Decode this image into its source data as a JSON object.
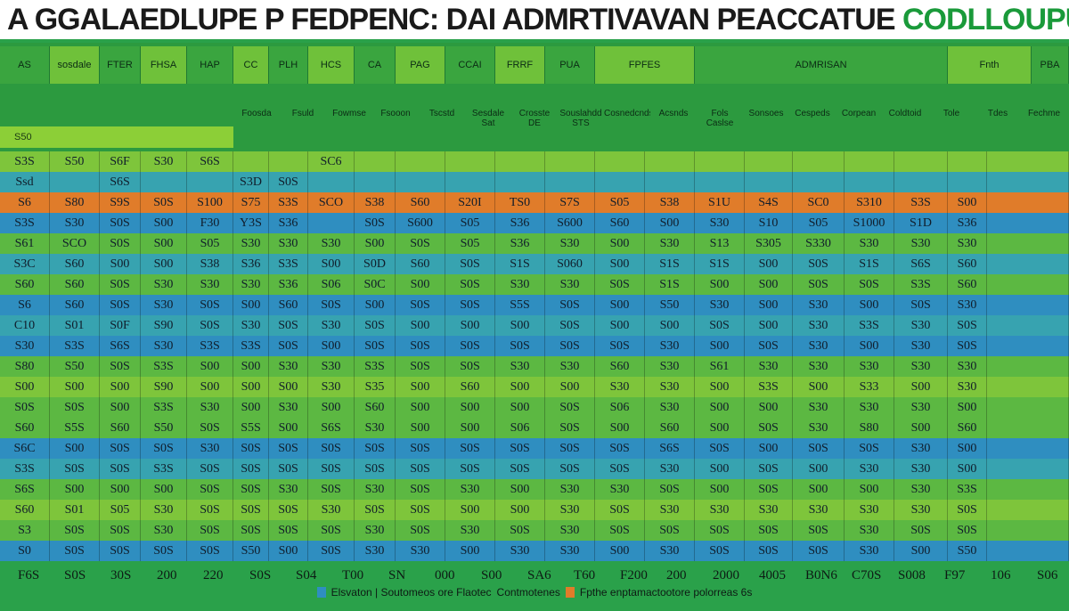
{
  "title": {
    "part1": "A GGALAEDLUPE",
    "part2": "P FEDPENC: DAI ADMRTIVAVAN PEACCATUE",
    "part3": "CODLLOUPUSE"
  },
  "header": {
    "top_cells": [
      "AS",
      "sosdale",
      "FTER",
      "FHSA",
      "HAP",
      "CC",
      "PLH",
      "HCS",
      "CA",
      "PAG",
      "CCAI",
      "FRRF",
      "PUA",
      "FPFES",
      "ADMRISAN",
      "Fnth",
      "PBA"
    ],
    "side_strip": "S50",
    "sub_heads": [
      "Foosda",
      "Fsuld",
      "Fowmse",
      "Fsooon",
      "Tscstd",
      "Sesdale\nSat",
      "Crosste\nDE",
      "Souslahdd\nSTS",
      "Cosnedcnds",
      "Acsnds",
      "Fols\nCaslse",
      "Sonsoes",
      "Cespeds",
      "Corpean",
      "Coldtoid",
      "Tole",
      "Tdes",
      "Fechme"
    ]
  },
  "colors": {
    "blue": "#2f8ec0",
    "teal": "#37a3b0",
    "green": "#5cb842",
    "lime": "#7ec53b",
    "orange": "#e07c2a",
    "header": "#2c9a3f",
    "title_green": "#1a9a3a"
  },
  "rows": [
    {
      "style": "lime",
      "cells": [
        "S3S",
        "S50",
        "S6F",
        "S30",
        "S6S",
        "",
        "",
        "SC6",
        "",
        "",
        "",
        "",
        "",
        "",
        "",
        "",
        "",
        "",
        "",
        "",
        ""
      ]
    },
    {
      "style": "teal",
      "cells": [
        "Ssd",
        "",
        "S6S",
        "",
        "",
        "S3D",
        "S0S",
        "",
        "",
        "",
        "",
        "",
        "",
        "",
        "",
        "",
        "",
        "",
        "",
        "",
        ""
      ]
    },
    {
      "style": "orange",
      "cells": [
        "S6",
        "S80",
        "S9S",
        "S0S",
        "S100",
        "S75",
        "S3S",
        "SCO",
        "S38",
        "S60",
        "S20I",
        "TS0",
        "S7S",
        "S05",
        "S38",
        "S1U",
        "S4S",
        "SC0",
        "S310",
        "S3S",
        "S00"
      ]
    },
    {
      "style": "blue",
      "cells": [
        "S3S",
        "S30",
        "S0S",
        "S00",
        "F30",
        "Y3S",
        "S36",
        "",
        "S0S",
        "S600",
        "S05",
        "S36",
        "S600",
        "S60",
        "S00",
        "S30",
        "S10",
        "S05",
        "S1000",
        "S1D",
        "S36"
      ]
    },
    {
      "style": "green",
      "cells": [
        "S61",
        "SCO",
        "S0S",
        "S00",
        "S05",
        "S30",
        "S30",
        "S30",
        "S00",
        "S0S",
        "S05",
        "S36",
        "S30",
        "S00",
        "S30",
        "S13",
        "S305",
        "S330",
        "S30",
        "S30",
        "S30"
      ]
    },
    {
      "style": "teal",
      "cells": [
        "S3C",
        "S60",
        "S00",
        "S00",
        "S38",
        "S36",
        "S3S",
        "S00",
        "S0D",
        "S60",
        "S0S",
        "S1S",
        "S060",
        "S00",
        "S1S",
        "S1S",
        "S00",
        "S0S",
        "S1S",
        "S6S",
        "S60"
      ]
    },
    {
      "style": "green",
      "cells": [
        "S60",
        "S60",
        "S0S",
        "S30",
        "S30",
        "S30",
        "S36",
        "S06",
        "S0C",
        "S00",
        "S0S",
        "S30",
        "S30",
        "S0S",
        "S1S",
        "S00",
        "S00",
        "S0S",
        "S0S",
        "S3S",
        "S60"
      ]
    },
    {
      "style": "blue",
      "cells": [
        "S6",
        "S60",
        "S0S",
        "S30",
        "S0S",
        "S00",
        "S60",
        "S0S",
        "S00",
        "S0S",
        "S0S",
        "S5S",
        "S0S",
        "S00",
        "S50",
        "S30",
        "S00",
        "S30",
        "S00",
        "S0S",
        "S30"
      ]
    },
    {
      "style": "teal",
      "cells": [
        "C10",
        "S01",
        "S0F",
        "S90",
        "S0S",
        "S30",
        "S0S",
        "S30",
        "S0S",
        "S00",
        "S00",
        "S00",
        "S0S",
        "S00",
        "S00",
        "S0S",
        "S00",
        "S30",
        "S3S",
        "S30",
        "S0S"
      ]
    },
    {
      "style": "blue",
      "cells": [
        "S30",
        "S3S",
        "S6S",
        "S30",
        "S3S",
        "S3S",
        "S0S",
        "S00",
        "S0S",
        "S0S",
        "S0S",
        "S0S",
        "S0S",
        "S0S",
        "S30",
        "S00",
        "S0S",
        "S30",
        "S00",
        "S30",
        "S0S"
      ]
    },
    {
      "style": "green",
      "cells": [
        "S80",
        "S50",
        "S0S",
        "S3S",
        "S00",
        "S00",
        "S30",
        "S30",
        "S3S",
        "S0S",
        "S0S",
        "S30",
        "S30",
        "S60",
        "S30",
        "S61",
        "S30",
        "S30",
        "S30",
        "S30",
        "S30"
      ]
    },
    {
      "style": "lime",
      "cells": [
        "S00",
        "S00",
        "S00",
        "S90",
        "S00",
        "S00",
        "S00",
        "S30",
        "S35",
        "S00",
        "S60",
        "S00",
        "S00",
        "S30",
        "S30",
        "S00",
        "S3S",
        "S00",
        "S33",
        "S00",
        "S30"
      ]
    },
    {
      "style": "green",
      "cells": [
        "S0S",
        "S0S",
        "S00",
        "S3S",
        "S30",
        "S00",
        "S30",
        "S00",
        "S60",
        "S00",
        "S00",
        "S00",
        "S0S",
        "S06",
        "S30",
        "S00",
        "S00",
        "S30",
        "S30",
        "S30",
        "S00"
      ]
    },
    {
      "style": "green",
      "cells": [
        "S60",
        "S5S",
        "S60",
        "S50",
        "S0S",
        "S5S",
        "S00",
        "S6S",
        "S30",
        "S00",
        "S00",
        "S06",
        "S0S",
        "S00",
        "S60",
        "S00",
        "S0S",
        "S30",
        "S80",
        "S00",
        "S60"
      ]
    },
    {
      "style": "blue",
      "cells": [
        "S6C",
        "S00",
        "S0S",
        "S0S",
        "S30",
        "S0S",
        "S0S",
        "S0S",
        "S0S",
        "S0S",
        "S0S",
        "S0S",
        "S0S",
        "S0S",
        "S6S",
        "S0S",
        "S00",
        "S0S",
        "S0S",
        "S30",
        "S00"
      ]
    },
    {
      "style": "teal",
      "cells": [
        "S3S",
        "S0S",
        "S0S",
        "S3S",
        "S0S",
        "S0S",
        "S0S",
        "S0S",
        "S0S",
        "S0S",
        "S0S",
        "S0S",
        "S0S",
        "S0S",
        "S30",
        "S00",
        "S0S",
        "S00",
        "S30",
        "S30",
        "S00"
      ]
    },
    {
      "style": "green",
      "cells": [
        "S6S",
        "S00",
        "S00",
        "S00",
        "S0S",
        "S0S",
        "S30",
        "S0S",
        "S30",
        "S0S",
        "S30",
        "S00",
        "S30",
        "S30",
        "S0S",
        "S00",
        "S0S",
        "S00",
        "S00",
        "S30",
        "S3S"
      ]
    },
    {
      "style": "lime",
      "cells": [
        "S60",
        "S01",
        "S05",
        "S30",
        "S0S",
        "S0S",
        "S0S",
        "S30",
        "S0S",
        "S0S",
        "S00",
        "S00",
        "S30",
        "S0S",
        "S30",
        "S30",
        "S30",
        "S30",
        "S30",
        "S30",
        "S0S"
      ]
    },
    {
      "style": "green",
      "cells": [
        "S3",
        "S0S",
        "S0S",
        "S30",
        "S0S",
        "S0S",
        "S0S",
        "S0S",
        "S30",
        "S0S",
        "S30",
        "S0S",
        "S30",
        "S0S",
        "S0S",
        "S0S",
        "S0S",
        "S0S",
        "S30",
        "S0S",
        "S0S"
      ]
    },
    {
      "style": "blue",
      "cells": [
        "S0",
        "S0S",
        "S0S",
        "S0S",
        "S0S",
        "S50",
        "S00",
        "S0S",
        "S30",
        "S30",
        "S00",
        "S30",
        "S30",
        "S00",
        "S30",
        "S0S",
        "S0S",
        "S0S",
        "S30",
        "S00",
        "S50"
      ]
    }
  ],
  "footer": {
    "cells": [
      "F6S",
      "S0S",
      "30S",
      "200",
      "220",
      "S0S",
      "S04",
      "T00",
      "SN",
      "000",
      "S00",
      "SA6",
      "T60",
      "F200",
      "200",
      "2000",
      "4005",
      "B0N6",
      "C70S",
      "S008",
      "F97",
      "106",
      "S06"
    ],
    "legend_left": "Elsvaton | Soutomeos ore Flaotec",
    "legend_mid": "Contmotenes",
    "legend_right": "Fpthe enptamactootore polorreas 6s"
  }
}
